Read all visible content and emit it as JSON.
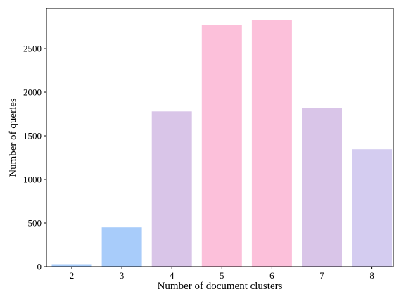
{
  "chart_data": {
    "type": "bar",
    "categories": [
      "2",
      "3",
      "4",
      "5",
      "6",
      "7",
      "8"
    ],
    "values": [
      28,
      450,
      1780,
      2770,
      2825,
      1822,
      1345
    ],
    "colors": [
      "#A8CCFA",
      "#A8CCFA",
      "#D9C5E8",
      "#FCC0DA",
      "#FCC0DA",
      "#D9C5E8",
      "#D4CCF0"
    ],
    "title": "",
    "xlabel": "Number of document clusters",
    "ylabel": "Number of queries",
    "ylim": [
      0,
      2960
    ],
    "yticks": [
      0,
      500,
      1000,
      1500,
      2000,
      2500
    ],
    "grid": false,
    "legend": "none"
  }
}
